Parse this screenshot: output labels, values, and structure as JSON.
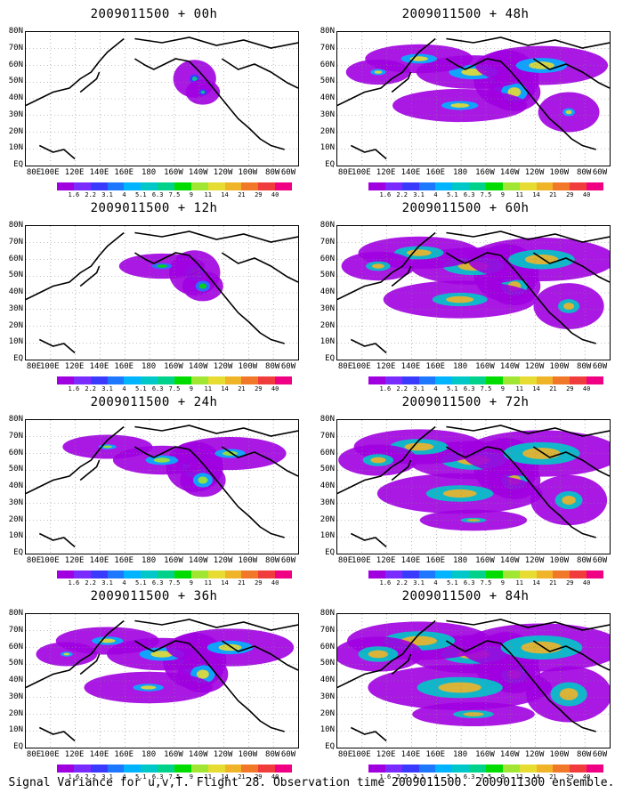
{
  "caption": "Signal Variance for u,v,T. Flight 28. Observation time 2009011500. 2009011300 ensemble.",
  "x_tick_labels": [
    "80E",
    "100E",
    "120E",
    "140E",
    "160E",
    "180",
    "160W",
    "140W",
    "120W",
    "100W",
    "80W",
    "60W"
  ],
  "y_tick_labels": [
    "EQ",
    "10N",
    "20N",
    "30N",
    "40N",
    "50N",
    "60N",
    "70N",
    "80N"
  ],
  "colorbar_labels": [
    "1.6",
    "2.2",
    "3.1",
    "4",
    "5.1",
    "6.3",
    "7.5",
    "9",
    "11",
    "14",
    "21",
    "29",
    "40"
  ],
  "colorbar_colors": [
    "#a000e0",
    "#7a2cff",
    "#3a3aff",
    "#1e78ff",
    "#00b4ff",
    "#00c8c8",
    "#00d28c",
    "#00dc00",
    "#a0e632",
    "#e6dc32",
    "#f0b428",
    "#f07828",
    "#f03c3c",
    "#f00082"
  ],
  "chart_data": [
    {
      "type": "heatmap",
      "title": "2009011500 + 00h",
      "xlim": [
        "80E",
        "60W"
      ],
      "ylim": [
        "EQ",
        "80N"
      ],
      "intensity": 0.05
    },
    {
      "type": "heatmap",
      "title": "2009011500 + 12h",
      "xlim": [
        "80E",
        "60W"
      ],
      "ylim": [
        "EQ",
        "80N"
      ],
      "intensity": 0.25
    },
    {
      "type": "heatmap",
      "title": "2009011500 + 24h",
      "xlim": [
        "80E",
        "60W"
      ],
      "ylim": [
        "EQ",
        "80N"
      ],
      "intensity": 0.4
    },
    {
      "type": "heatmap",
      "title": "2009011500 + 36h",
      "xlim": [
        "80E",
        "60W"
      ],
      "ylim": [
        "EQ",
        "80N"
      ],
      "intensity": 0.55
    },
    {
      "type": "heatmap",
      "title": "2009011500 + 48h",
      "xlim": [
        "80E",
        "60W"
      ],
      "ylim": [
        "EQ",
        "80N"
      ],
      "intensity": 0.6
    },
    {
      "type": "heatmap",
      "title": "2009011500 + 60h",
      "xlim": [
        "80E",
        "60W"
      ],
      "ylim": [
        "EQ",
        "80N"
      ],
      "intensity": 0.75
    },
    {
      "type": "heatmap",
      "title": "2009011500 + 72h",
      "xlim": [
        "80E",
        "60W"
      ],
      "ylim": [
        "EQ",
        "80N"
      ],
      "intensity": 0.85
    },
    {
      "type": "heatmap",
      "title": "2009011500 + 84h",
      "xlim": [
        "80E",
        "60W"
      ],
      "ylim": [
        "EQ",
        "80N"
      ],
      "intensity": 1.0
    }
  ]
}
